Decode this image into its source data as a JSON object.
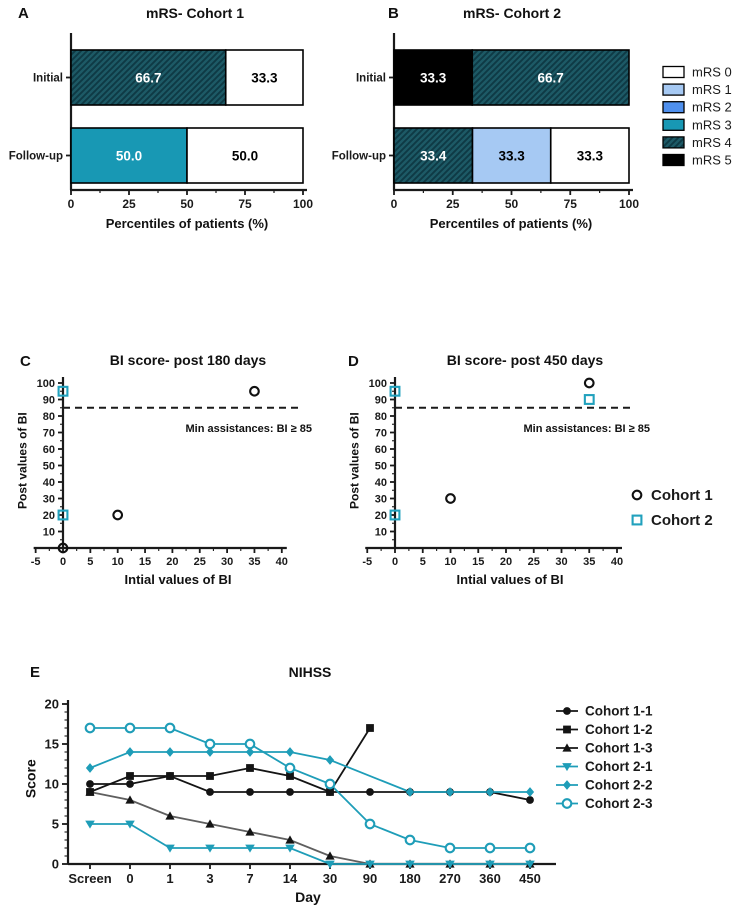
{
  "figure": {
    "panels": [
      {
        "id": "A",
        "label": "A",
        "title": "mRS- Cohort 1",
        "xlabel": "Percentiles of patients (%)"
      },
      {
        "id": "B",
        "label": "B",
        "title": "mRS- Cohort 2",
        "xlabel": "Percentiles of patients (%)"
      },
      {
        "id": "C",
        "label": "C",
        "title": "BI score- post 180 days",
        "xlabel": "Intial values of BI",
        "ylabel": "Post values of BI",
        "annotation": "Min assistances: BI ≥ 85"
      },
      {
        "id": "D",
        "label": "D",
        "title": "BI score- post 450 days",
        "xlabel": "Intial values of BI",
        "ylabel": "Post values of BI",
        "annotation": "Min assistances: BI ≥ 85"
      },
      {
        "id": "E",
        "label": "E",
        "title": "NIHSS",
        "xlabel": "Day",
        "ylabel": "Score"
      }
    ]
  },
  "colors": {
    "black": "#111111",
    "teal_solid": "#1898b4",
    "teal_line": "#1e9db8",
    "teal_dark": "#1d5a66",
    "teal_dark_hatch": "#0e3a45",
    "light_blue": "#a6c9f3",
    "blue": "#4f90ee",
    "gray_line": "#5f5f5f",
    "white": "#ffffff"
  },
  "mrs_legend": [
    {
      "label": "mRS 0",
      "color": "#ffffff",
      "hatch": false
    },
    {
      "label": "mRS 1",
      "color": "#a6c9f3",
      "hatch": false
    },
    {
      "label": "mRS 2",
      "color": "#4f90ee",
      "hatch": false
    },
    {
      "label": "mRS 3",
      "color": "#1898b4",
      "hatch": false
    },
    {
      "label": "mRS 4",
      "color": "#1d5a66",
      "hatch": true
    },
    {
      "label": "mRS 5",
      "color": "#000000",
      "hatch": false
    }
  ],
  "chart_data": [
    {
      "panel": "A",
      "type": "bar",
      "orientation": "horizontal-stacked",
      "title": "mRS- Cohort 1",
      "xlabel": "Percentiles of patients (%)",
      "xlim": [
        0,
        100
      ],
      "xticks": [
        0,
        25,
        50,
        75,
        100
      ],
      "categories": [
        "Initial",
        "Follow-up"
      ],
      "rows": [
        {
          "category": "Initial",
          "segments": [
            {
              "series": "mRS 4",
              "value": 66.7
            },
            {
              "series": "mRS 0",
              "value": 33.3
            }
          ]
        },
        {
          "category": "Follow-up",
          "segments": [
            {
              "series": "mRS 3",
              "value": 50.0
            },
            {
              "series": "mRS 0",
              "value": 50.0
            }
          ]
        }
      ]
    },
    {
      "panel": "B",
      "type": "bar",
      "orientation": "horizontal-stacked",
      "title": "mRS- Cohort 2",
      "xlabel": "Percentiles of patients (%)",
      "xlim": [
        0,
        100
      ],
      "xticks": [
        0,
        25,
        50,
        75,
        100
      ],
      "categories": [
        "Initial",
        "Follow-up"
      ],
      "legend": [
        "mRS 0",
        "mRS 1",
        "mRS 2",
        "mRS 3",
        "mRS 4",
        "mRS 5"
      ],
      "rows": [
        {
          "category": "Initial",
          "segments": [
            {
              "series": "mRS 5",
              "value": 33.3
            },
            {
              "series": "mRS 4",
              "value": 66.7
            }
          ]
        },
        {
          "category": "Follow-up",
          "segments": [
            {
              "series": "mRS 4",
              "value": 33.4
            },
            {
              "series": "mRS 1",
              "value": 33.3
            },
            {
              "series": "mRS 0",
              "value": 33.3
            }
          ]
        }
      ]
    },
    {
      "panel": "C",
      "type": "scatter",
      "title": "BI score- post 180 days",
      "xlabel": "Intial values of BI",
      "ylabel": "Post values of BI",
      "xlim": [
        -5,
        40
      ],
      "ylim": [
        0,
        100
      ],
      "xticks": [
        -5,
        0,
        5,
        10,
        15,
        20,
        25,
        30,
        35,
        40
      ],
      "yticks": [
        10,
        20,
        30,
        40,
        50,
        60,
        70,
        80,
        90,
        100
      ],
      "threshold": {
        "y": 85,
        "label": "Min assistances: BI ≥ 85"
      },
      "series": [
        {
          "name": "Cohort 1",
          "marker": "open-circle",
          "color": "#111111",
          "points": [
            [
              0,
              0
            ],
            [
              10,
              20
            ],
            [
              35,
              95
            ]
          ]
        },
        {
          "name": "Cohort 2",
          "marker": "open-square",
          "color": "#21a1bd",
          "points": [
            [
              0,
              20
            ],
            [
              0,
              95
            ]
          ]
        }
      ]
    },
    {
      "panel": "D",
      "type": "scatter",
      "title": "BI score- post 450 days",
      "xlabel": "Intial values of BI",
      "ylabel": "Post values of BI",
      "xlim": [
        -5,
        40
      ],
      "ylim": [
        0,
        100
      ],
      "xticks": [
        -5,
        0,
        5,
        10,
        15,
        20,
        25,
        30,
        35,
        40
      ],
      "yticks": [
        10,
        20,
        30,
        40,
        50,
        60,
        70,
        80,
        90,
        100
      ],
      "threshold": {
        "y": 85,
        "label": "Min assistances: BI ≥ 85"
      },
      "legend": [
        "Cohort 1",
        "Cohort 2"
      ],
      "series": [
        {
          "name": "Cohort 1",
          "marker": "open-circle",
          "color": "#111111",
          "points": [
            [
              10,
              30
            ],
            [
              35,
              100
            ]
          ]
        },
        {
          "name": "Cohort 2",
          "marker": "open-square",
          "color": "#21a1bd",
          "points": [
            [
              0,
              20
            ],
            [
              0,
              95
            ],
            [
              35,
              90
            ]
          ]
        }
      ]
    },
    {
      "panel": "E",
      "type": "line",
      "title": "NIHSS",
      "xlabel": "Day",
      "ylabel": "Score",
      "categories": [
        "Screen",
        "0",
        "1",
        "3",
        "7",
        "14",
        "30",
        "90",
        "180",
        "270",
        "360",
        "450"
      ],
      "ylim": [
        0,
        20
      ],
      "yticks": [
        0,
        5,
        10,
        15,
        20
      ],
      "legend_position": "right",
      "series": [
        {
          "name": "Cohort 1-1",
          "marker": "circle",
          "color": "#141414",
          "line_color": "#141414",
          "values": [
            10,
            10,
            11,
            9,
            9,
            9,
            9,
            9,
            9,
            9,
            9,
            8
          ]
        },
        {
          "name": "Cohort 1-2",
          "marker": "square",
          "color": "#141414",
          "line_color": "#141414",
          "values": [
            9,
            11,
            11,
            11,
            12,
            11,
            9,
            17,
            null,
            null,
            null,
            null
          ]
        },
        {
          "name": "Cohort 1-3",
          "marker": "triangle-up",
          "color": "#141414",
          "line_color": "#5f5f5f",
          "values": [
            9,
            8,
            6,
            5,
            4,
            3,
            1,
            0,
            0,
            0,
            0,
            0
          ]
        },
        {
          "name": "Cohort 2-1",
          "marker": "triangle-down",
          "color": "#1e9db8",
          "line_color": "#1e9db8",
          "values": [
            5,
            5,
            2,
            2,
            2,
            2,
            0,
            0,
            0,
            0,
            0,
            0
          ]
        },
        {
          "name": "Cohort 2-2",
          "marker": "diamond",
          "color": "#1e9db8",
          "line_color": "#1e9db8",
          "values": [
            12,
            14,
            14,
            14,
            14,
            14,
            13,
            null,
            9,
            9,
            9,
            9
          ]
        },
        {
          "name": "Cohort 2-3",
          "marker": "open-circle",
          "color": "#1e9db8",
          "line_color": "#1e9db8",
          "values": [
            17,
            17,
            17,
            15,
            15,
            12,
            10,
            5,
            3,
            2,
            2,
            2
          ]
        }
      ]
    }
  ]
}
